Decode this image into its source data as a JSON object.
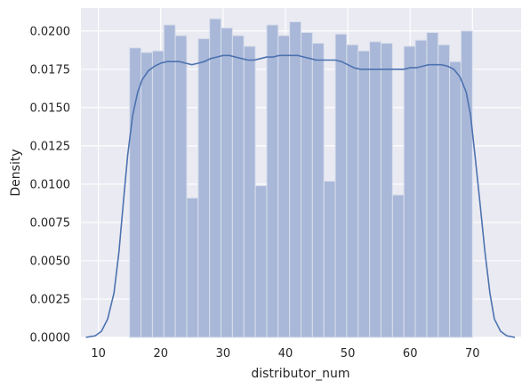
{
  "chart_data": {
    "type": "bar",
    "style": "histogram with kernel density overlay",
    "title": "",
    "xlabel": "distributor_num",
    "ylabel": "Density",
    "xlim": [
      7.2,
      77.8
    ],
    "ylim": [
      0,
      0.0215
    ],
    "grid": true,
    "x_ticks": [
      10,
      20,
      30,
      40,
      50,
      60,
      70
    ],
    "x_tick_labels": [
      "10",
      "20",
      "30",
      "40",
      "50",
      "60",
      "70"
    ],
    "y_ticks": [
      0,
      0.0025,
      0.005,
      0.0075,
      0.01,
      0.0125,
      0.015,
      0.0175,
      0.02
    ],
    "y_tick_labels": [
      "0.0000",
      "0.0025",
      "0.0050",
      "0.0075",
      "0.0100",
      "0.0125",
      "0.0150",
      "0.0175",
      "0.0200"
    ],
    "bins": {
      "edges": [
        15.0,
        16.83,
        18.67,
        20.5,
        22.33,
        24.17,
        26.0,
        27.83,
        29.67,
        31.5,
        33.33,
        35.17,
        37.0,
        38.83,
        40.67,
        42.5,
        44.33,
        46.17,
        48.0,
        49.83,
        51.67,
        53.5,
        55.33,
        57.17,
        59.0,
        60.83,
        62.67,
        64.5,
        66.33,
        68.17,
        70.0
      ],
      "values": [
        0.0189,
        0.0186,
        0.0187,
        0.0204,
        0.0197,
        0.0091,
        0.0195,
        0.0208,
        0.0202,
        0.0197,
        0.019,
        0.0099,
        0.0204,
        0.0197,
        0.0206,
        0.0199,
        0.0192,
        0.0102,
        0.0198,
        0.0191,
        0.0187,
        0.0193,
        0.0192,
        0.0093,
        0.019,
        0.0194,
        0.0199,
        0.0191,
        0.018,
        0.02
      ]
    },
    "kde": {
      "x": [
        8.0,
        9.5,
        10.5,
        11.5,
        12.5,
        13.3,
        14.0,
        14.7,
        15.5,
        16.3,
        17.0,
        18.0,
        19.0,
        20.0,
        21.0,
        22.0,
        23.0,
        24.0,
        25.0,
        26.0,
        27.0,
        28.0,
        29.0,
        30.0,
        31.0,
        32.0,
        33.0,
        34.0,
        35.0,
        36.0,
        37.0,
        38.0,
        39.0,
        40.0,
        41.0,
        42.0,
        43.0,
        44.0,
        45.0,
        46.0,
        47.0,
        48.0,
        49.0,
        50.0,
        51.0,
        52.0,
        53.0,
        54.0,
        55.0,
        56.0,
        57.0,
        58.0,
        59.0,
        60.0,
        61.0,
        62.0,
        63.0,
        64.0,
        65.0,
        66.0,
        67.0,
        68.0,
        69.0,
        69.7,
        70.4,
        71.2,
        72.0,
        72.8,
        73.5,
        74.5,
        75.5,
        76.8
      ],
      "y": [
        0.0,
        0.0001,
        0.0004,
        0.0012,
        0.0029,
        0.0056,
        0.0088,
        0.0119,
        0.0145,
        0.016,
        0.0168,
        0.0174,
        0.0177,
        0.0179,
        0.018,
        0.018,
        0.018,
        0.0179,
        0.0178,
        0.0179,
        0.018,
        0.0182,
        0.0183,
        0.0184,
        0.0184,
        0.0183,
        0.0182,
        0.0181,
        0.0181,
        0.0182,
        0.0183,
        0.0183,
        0.0184,
        0.0184,
        0.0184,
        0.0184,
        0.0183,
        0.0182,
        0.0181,
        0.0181,
        0.0181,
        0.0181,
        0.018,
        0.0178,
        0.0176,
        0.0175,
        0.0175,
        0.0175,
        0.0175,
        0.0175,
        0.0175,
        0.0175,
        0.0175,
        0.0176,
        0.0176,
        0.0177,
        0.0178,
        0.0178,
        0.0178,
        0.0177,
        0.0175,
        0.017,
        0.016,
        0.0145,
        0.0119,
        0.0088,
        0.0056,
        0.0029,
        0.0012,
        0.0004,
        0.0001,
        0.0
      ]
    },
    "colors": {
      "plot_background": "#eaeaf2",
      "grid": "#ffffff",
      "bar_fill": "#a9b8d8",
      "bar_edge": "#d9deec",
      "kde_line": "#4c72b0",
      "text": "#262626"
    }
  }
}
